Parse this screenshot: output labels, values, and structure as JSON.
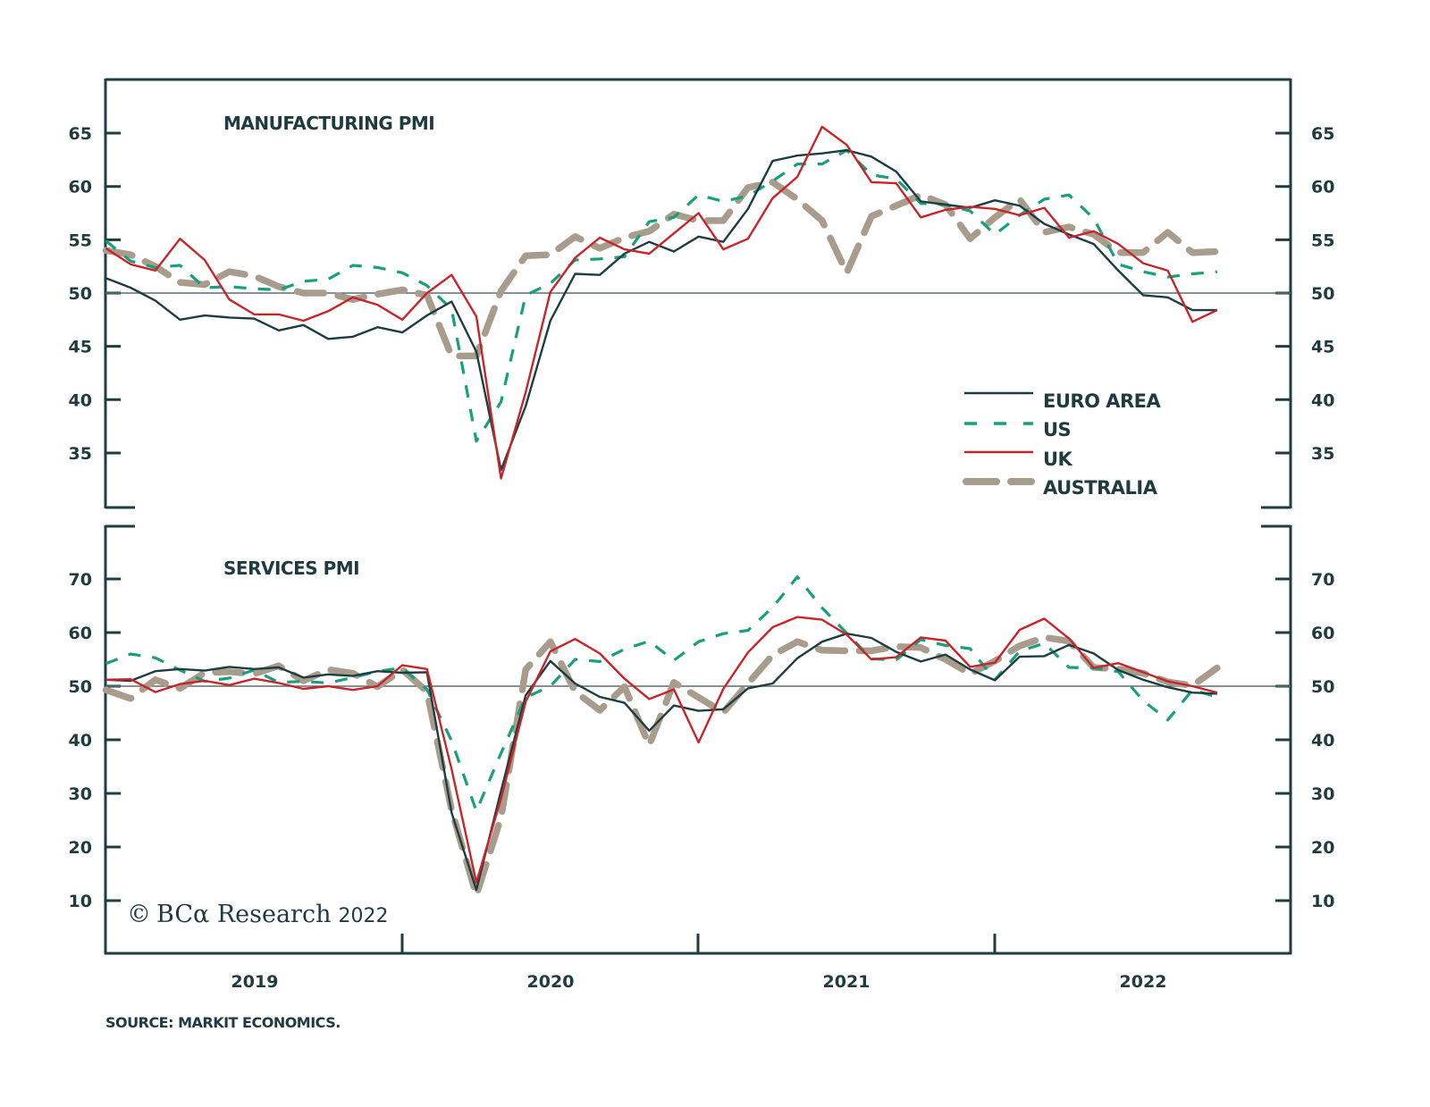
{
  "chart_data": [
    {
      "type": "line",
      "title": "MANUFACTURING PMI",
      "xlabel": "",
      "ylabel": "",
      "ylim": [
        30,
        70
      ],
      "yticks": [
        35,
        40,
        45,
        50,
        55,
        60,
        65
      ],
      "ytick_labels": [
        "35",
        "40",
        "45",
        "50",
        "55",
        "60",
        "65"
      ],
      "reference_line": 50,
      "x_start": "2019-01",
      "x_end": "2022-10",
      "frequency": "monthly",
      "grid": false,
      "legend_position": "bottom-right",
      "series": [
        {
          "name": "EURO AREA",
          "values": [
            51.4,
            50.5,
            49.3,
            47.5,
            47.9,
            47.7,
            47.6,
            46.5,
            47.0,
            45.7,
            45.9,
            46.8,
            46.3,
            47.9,
            49.2,
            44.5,
            33.4,
            39.4,
            47.4,
            51.8,
            51.7,
            53.7,
            54.8,
            53.9,
            55.3,
            54.8,
            57.9,
            62.4,
            62.9,
            63.1,
            63.4,
            62.8,
            61.4,
            58.6,
            58.3,
            58.0,
            58.7,
            58.2,
            56.5,
            55.5,
            54.6,
            52.1,
            49.8,
            49.6,
            48.4,
            48.4
          ]
        },
        {
          "name": "US",
          "values": [
            54.9,
            53.0,
            52.4,
            52.6,
            50.5,
            50.6,
            50.4,
            50.3,
            51.1,
            51.3,
            52.6,
            52.4,
            51.9,
            50.7,
            48.5,
            36.1,
            39.8,
            49.8,
            50.9,
            53.1,
            53.2,
            53.4,
            56.7,
            57.1,
            59.2,
            58.6,
            59.1,
            60.5,
            62.1,
            62.1,
            63.4,
            61.1,
            60.7,
            58.4,
            58.3,
            57.7,
            55.5,
            57.3,
            58.8,
            59.2,
            57.0,
            52.7,
            52.0,
            51.5,
            51.8,
            52.0
          ]
        },
        {
          "name": "UK",
          "values": [
            54.2,
            52.7,
            52.1,
            55.1,
            53.1,
            49.4,
            48.0,
            48.0,
            47.4,
            48.3,
            49.6,
            48.9,
            47.5,
            50.0,
            51.7,
            47.8,
            32.6,
            40.7,
            50.1,
            53.3,
            55.2,
            54.1,
            53.7,
            55.6,
            57.5,
            54.1,
            55.1,
            58.9,
            60.9,
            65.6,
            63.9,
            60.4,
            60.3,
            57.1,
            57.8,
            58.1,
            57.9,
            57.3,
            58.0,
            55.2,
            55.8,
            54.6,
            52.8,
            52.1,
            47.3,
            48.4
          ]
        },
        {
          "name": "AUSTRALIA",
          "values": [
            54.0,
            53.6,
            52.5,
            51.0,
            50.8,
            52.0,
            51.6,
            50.6,
            50.0,
            50.0,
            49.4,
            49.9,
            50.3,
            49.8,
            44.1,
            44.1,
            50.2,
            53.5,
            53.6,
            55.3,
            54.2,
            55.2,
            55.8,
            57.4,
            56.8,
            56.8,
            59.9,
            60.4,
            58.8,
            56.8,
            51.9,
            57.2,
            58.2,
            59.2,
            58.3,
            55.1,
            57.1,
            58.8,
            55.7,
            56.2,
            55.5,
            53.8,
            53.8,
            55.7,
            53.8,
            53.9
          ]
        }
      ]
    },
    {
      "type": "line",
      "title": "SERVICES PMI",
      "xlabel": "",
      "ylabel": "",
      "ylim": [
        0,
        80
      ],
      "yticks": [
        10,
        20,
        30,
        40,
        50,
        60,
        70
      ],
      "ytick_labels": [
        "10",
        "20",
        "30",
        "40",
        "50",
        "60",
        "70"
      ],
      "reference_line": 50,
      "x_start": "2019-01",
      "x_end": "2022-10",
      "frequency": "monthly",
      "grid": false,
      "series": [
        {
          "name": "EURO AREA",
          "values": [
            51.2,
            51.0,
            52.8,
            53.2,
            52.9,
            53.6,
            53.2,
            53.5,
            51.6,
            52.2,
            51.9,
            52.8,
            52.5,
            52.6,
            26.4,
            12.0,
            30.5,
            48.3,
            54.7,
            50.5,
            48.0,
            46.9,
            41.7,
            46.4,
            45.4,
            45.7,
            49.6,
            50.5,
            55.2,
            58.3,
            59.8,
            59.0,
            56.4,
            54.6,
            55.9,
            53.1,
            51.1,
            55.5,
            55.6,
            57.7,
            56.1,
            53.0,
            51.2,
            49.8,
            48.8,
            48.6
          ]
        },
        {
          "name": "US",
          "values": [
            54.2,
            56.0,
            55.3,
            53.0,
            50.9,
            51.5,
            53.0,
            50.7,
            50.9,
            50.6,
            51.6,
            52.8,
            53.4,
            49.4,
            39.8,
            26.7,
            37.5,
            47.9,
            50.0,
            55.0,
            54.6,
            56.9,
            58.4,
            54.8,
            58.3,
            59.8,
            60.4,
            64.7,
            70.4,
            64.6,
            59.9,
            55.1,
            54.9,
            58.7,
            57.6,
            57.0,
            51.2,
            56.5,
            58.0,
            53.5,
            53.4,
            52.7,
            47.3,
            43.7,
            49.3,
            48.0
          ]
        },
        {
          "name": "UK",
          "values": [
            51.2,
            51.3,
            48.9,
            50.4,
            51.0,
            50.2,
            51.4,
            50.6,
            49.5,
            50.0,
            49.3,
            50.0,
            53.9,
            53.2,
            34.5,
            13.4,
            29.0,
            47.1,
            56.5,
            58.8,
            56.1,
            51.4,
            47.6,
            49.4,
            39.5,
            49.5,
            56.3,
            61.0,
            62.9,
            62.4,
            59.6,
            55.0,
            55.4,
            59.1,
            58.5,
            53.6,
            54.4,
            60.5,
            62.6,
            58.9,
            53.4,
            54.3,
            52.6,
            50.9,
            50.0,
            48.8
          ]
        },
        {
          "name": "AUSTRALIA",
          "values": [
            49.3,
            47.7,
            51.2,
            49.6,
            52.5,
            52.7,
            52.3,
            53.8,
            51.0,
            53.1,
            52.4,
            49.9,
            53.1,
            49.0,
            26.9,
            11.0,
            25.5,
            53.1,
            58.3,
            49.0,
            45.5,
            49.9,
            39.0,
            50.7,
            47.9,
            45.1,
            50.5,
            55.8,
            58.3,
            56.7,
            56.6,
            56.6,
            57.4,
            57.2,
            55.0,
            52.3,
            54.7,
            57.5,
            59.1,
            58.4,
            53.5,
            53.2,
            52.4,
            50.8,
            50.1,
            53.4
          ]
        }
      ]
    }
  ],
  "x_axis": {
    "year_labels": [
      "2019",
      "2020",
      "2021",
      "2022"
    ]
  },
  "legend": {
    "items": [
      {
        "label": "EURO AREA",
        "color": "#1e3d40",
        "style": "solid"
      },
      {
        "label": "US",
        "color": "#17a07a",
        "style": "dashed"
      },
      {
        "label": "UK",
        "color": "#c8252b",
        "style": "solid"
      },
      {
        "label": "AUSTRALIA",
        "color": "#a89c8c",
        "style": "dashed-thick"
      }
    ]
  },
  "colors": {
    "axis": "#1e3d40",
    "reference_line": "#5a6f70",
    "text": "#1f3b3f"
  },
  "watermark": {
    "symbol": "©",
    "brand": "BCα Research",
    "year": "2022"
  },
  "source": "SOURCE: MARKIT ECONOMICS."
}
